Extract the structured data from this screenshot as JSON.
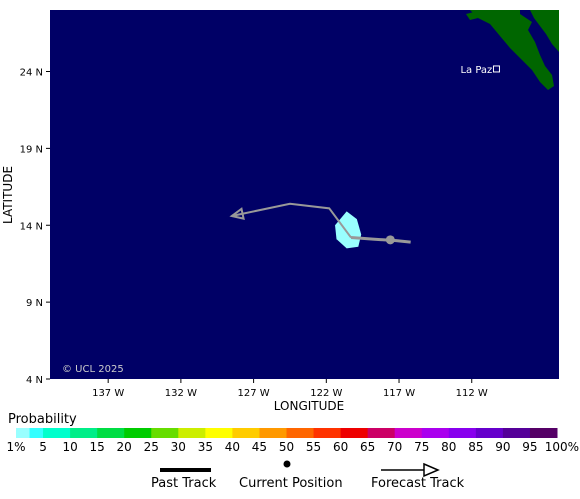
{
  "map": {
    "xlabel": "LONGITUDE",
    "ylabel": "LATITUDE",
    "lon_range": [
      -141,
      -106
    ],
    "lat_range": [
      4,
      28
    ],
    "x_ticks": [
      {
        "lon": -137,
        "label": "137 W"
      },
      {
        "lon": -132,
        "label": "132 W"
      },
      {
        "lon": -127,
        "label": "127 W"
      },
      {
        "lon": -122,
        "label": "122 W"
      },
      {
        "lon": -117,
        "label": "117 W"
      },
      {
        "lon": -112,
        "label": "112 W"
      }
    ],
    "y_ticks": [
      {
        "lat": 24,
        "label": "24 N"
      },
      {
        "lat": 19,
        "label": "19 N"
      },
      {
        "lat": 14,
        "label": "14 N"
      },
      {
        "lat": 9,
        "label": "9 N"
      },
      {
        "lat": 4,
        "label": "4 N"
      }
    ],
    "copyright": "© UCL 2025",
    "place_label": "La Paz",
    "place_location": {
      "lon": -110.3,
      "lat": 24.1
    },
    "ocean_color": "#000066",
    "land_color": "#006600",
    "track_color": "#999999",
    "probability_color": "#99ffff",
    "past_track": [
      {
        "lon": -116.2,
        "lat": 12.9
      },
      {
        "lon": -117.2,
        "lat": 13.0
      },
      {
        "lon": -118.8,
        "lat": 13.1
      },
      {
        "lon": -120.3,
        "lat": 13.2
      }
    ],
    "current_position": {
      "lon": -117.6,
      "lat": 13.05
    },
    "forecast_track": [
      {
        "lon": -120.3,
        "lat": 13.2
      },
      {
        "lon": -121.8,
        "lat": 15.1
      },
      {
        "lon": -124.5,
        "lat": 15.4
      },
      {
        "lon": -128.5,
        "lat": 14.6
      }
    ],
    "probability_region": [
      {
        "lon": -121.4,
        "lat": 14.0
      },
      {
        "lon": -120.6,
        "lat": 14.9
      },
      {
        "lon": -119.9,
        "lat": 14.4
      },
      {
        "lon": -119.6,
        "lat": 13.4
      },
      {
        "lon": -119.8,
        "lat": 12.6
      },
      {
        "lon": -120.6,
        "lat": 12.5
      },
      {
        "lon": -121.3,
        "lat": 13.1
      }
    ]
  },
  "legend": {
    "title": "Probability",
    "bins": [
      {
        "label": "1%",
        "color": "#99ffff"
      },
      {
        "label": "5",
        "color": "#33ffff"
      },
      {
        "label": "10",
        "color": "#00ffcc"
      },
      {
        "label": "15",
        "color": "#00ee88"
      },
      {
        "label": "20",
        "color": "#00dd44"
      },
      {
        "label": "25",
        "color": "#00cc00"
      },
      {
        "label": "30",
        "color": "#66dd00"
      },
      {
        "label": "35",
        "color": "#ccee00"
      },
      {
        "label": "40",
        "color": "#ffff00"
      },
      {
        "label": "45",
        "color": "#ffcc00"
      },
      {
        "label": "50",
        "color": "#ff9900"
      },
      {
        "label": "55",
        "color": "#ff6600"
      },
      {
        "label": "60",
        "color": "#ff3300"
      },
      {
        "label": "65",
        "color": "#ee0000"
      },
      {
        "label": "70",
        "color": "#cc0066"
      },
      {
        "label": "75",
        "color": "#cc00cc"
      },
      {
        "label": "80",
        "color": "#aa00ee"
      },
      {
        "label": "85",
        "color": "#8800ee"
      },
      {
        "label": "90",
        "color": "#6600cc"
      },
      {
        "label": "95",
        "color": "#550099"
      },
      {
        "label": "100%",
        "color": "#550066"
      }
    ],
    "past_track_label": "Past Track",
    "current_position_label": "Current Position",
    "forecast_track_label": "Forecast Track"
  }
}
